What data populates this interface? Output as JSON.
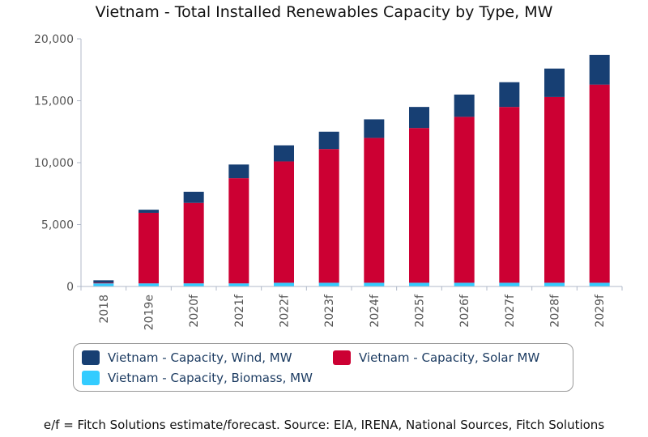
{
  "title": "Vietnam - Total Installed Renewables Capacity by Type, MW",
  "footnote": "e/f = Fitch Solutions estimate/forecast. Source: EIA, IRENA, National Sources, Fitch Solutions",
  "colors": {
    "wind": "#173f73",
    "solar": "#cc0033",
    "biomass": "#33ccff",
    "axis": "#b0b8c8",
    "tick_text": "#555555"
  },
  "legend": [
    {
      "key": "wind",
      "label": "Vietnam - Capacity, Wind, MW"
    },
    {
      "key": "solar",
      "label": "Vietnam - Capacity, Solar MW"
    },
    {
      "key": "biomass",
      "label": "Vietnam - Capacity, Biomass, MW"
    }
  ],
  "chart_data": {
    "type": "bar",
    "stacked": true,
    "title": "Vietnam - Total Installed Renewables Capacity by Type, MW",
    "xlabel": "",
    "ylabel": "",
    "ylim": [
      0,
      20000
    ],
    "yticks": [
      0,
      5000,
      10000,
      15000,
      20000
    ],
    "ytick_labels": [
      "0",
      "5,000",
      "10,000",
      "15,000",
      "20,000"
    ],
    "grid": false,
    "legend_position": "bottom",
    "categories": [
      "2018",
      "2019e",
      "2020f",
      "2021f",
      "2022f",
      "2023f",
      "2024f",
      "2025f",
      "2026f",
      "2027f",
      "2028f",
      "2029f"
    ],
    "series": [
      {
        "name": "Vietnam - Capacity, Biomass, MW",
        "key": "biomass",
        "values": [
          250,
          250,
          250,
          250,
          300,
          300,
          300,
          300,
          300,
          300,
          300,
          300
        ]
      },
      {
        "name": "Vietnam - Capacity, Solar MW",
        "key": "solar",
        "values": [
          50,
          5700,
          6500,
          8500,
          9800,
          10800,
          11700,
          12500,
          13400,
          14200,
          15000,
          16000
        ]
      },
      {
        "name": "Vietnam - Capacity, Wind, MW",
        "key": "wind",
        "values": [
          200,
          250,
          900,
          1100,
          1300,
          1400,
          1500,
          1700,
          1800,
          2000,
          2300,
          2400
        ]
      }
    ]
  }
}
